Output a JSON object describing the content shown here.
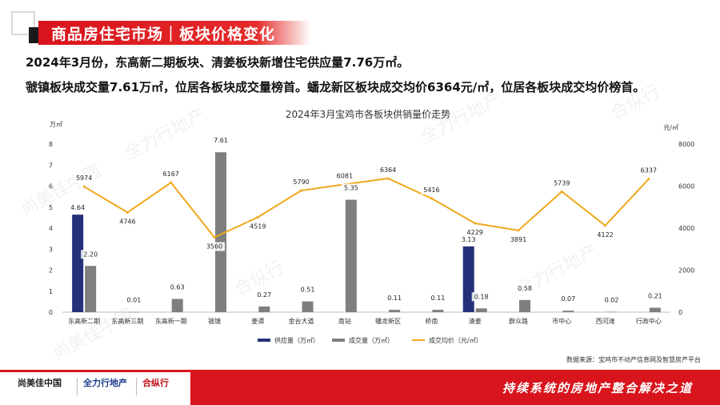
{
  "page": {
    "title": "商品房住宅市场｜板块价格变化",
    "summary_line1": "2024年3月份，东高新二期板块、清姜板块新增住宅供应量7.76万㎡。",
    "summary_line2": "虢镇板块成交量7.61万㎡，位居各板块成交量榜首。蟠龙新区板块成交均价6364元/㎡，位居各板块成交均价榜首。",
    "source": "数据来源：宝鸡市不动产信息网及智慧房产平台",
    "slogan": "持续系统的房地产整合解决之道",
    "logos": [
      "尚美佳中国",
      "全力行地产",
      "合纵行"
    ],
    "watermarks": [
      "尚美佳中國",
      "全力行地产",
      "合纵行"
    ]
  },
  "chart_data": {
    "type": "bar",
    "title": "2024年3月宝鸡市各板块供销量价走势",
    "ylabel_left": "万㎡",
    "ylabel_right": "元/㎡",
    "ylim_left": [
      0,
      8
    ],
    "yticks_left": [
      0,
      1,
      2,
      3,
      4,
      5,
      6,
      7,
      8
    ],
    "ylim_right": [
      0,
      8000
    ],
    "yticks_right": [
      0,
      2000,
      4000,
      6000,
      8000
    ],
    "legend_position": "bottom",
    "grid": false,
    "categories": [
      "东高新二期",
      "东高新三期",
      "东高新一期",
      "虢镇",
      "姜谭",
      "金台大道",
      "南站",
      "蟠龙新区",
      "桥南",
      "清姜",
      "群众路",
      "市中心",
      "西河滩",
      "行政中心"
    ],
    "series": [
      {
        "name": "供应量（万㎡）",
        "type": "bar",
        "axis": "left",
        "color": "#25307a",
        "values": [
          4.64,
          null,
          null,
          null,
          null,
          null,
          null,
          null,
          null,
          3.13,
          null,
          null,
          null,
          null
        ],
        "labels": [
          "4.64",
          "",
          "",
          "",
          "",
          "",
          "",
          "",
          "",
          "3.13",
          "",
          "",
          "",
          ""
        ]
      },
      {
        "name": "成交量（万㎡）",
        "type": "bar",
        "axis": "left",
        "color": "#7f7f7f",
        "values": [
          2.2,
          0.01,
          0.63,
          7.61,
          0.27,
          0.51,
          5.35,
          0.11,
          0.11,
          0.18,
          0.58,
          0.07,
          0.02,
          0.21
        ],
        "labels": [
          "2.20",
          "0.01",
          "0.63",
          "7.61",
          "0.27",
          "0.51",
          "5.35",
          "0.11",
          "0.11",
          "0.18",
          "0.58",
          "0.07",
          "0.02",
          "0.21"
        ]
      },
      {
        "name": "成交均价（元/㎡）",
        "type": "line",
        "axis": "right",
        "color": "#f0a81c",
        "values": [
          5974,
          4746,
          6167,
          3560,
          4519,
          5790,
          6081,
          6364,
          5416,
          4229,
          3891,
          5739,
          4122,
          6337
        ],
        "labels": [
          "5974",
          "4746",
          "6167",
          "3560",
          "4519",
          "5790",
          "6081",
          "6364",
          "5416",
          "4229",
          "3891",
          "5739",
          "4122",
          "6337"
        ]
      }
    ]
  }
}
